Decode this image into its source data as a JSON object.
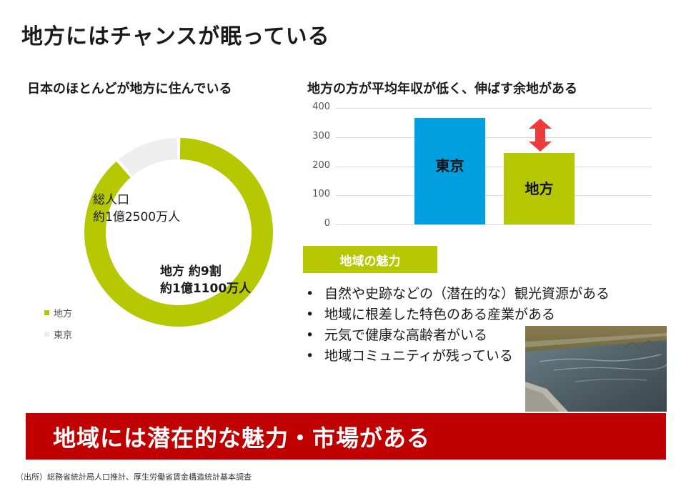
{
  "title": "地方にはチャンスが眠っている",
  "left_panel": {
    "subtitle": "日本のほとんどが地方に住んでいる",
    "total_label_line1": "総人口",
    "total_label_line2": "約1億2500万人",
    "local_label_line1": "地方 約9割",
    "local_label_line2": "約1億1100万人",
    "legend": [
      {
        "name": "地方",
        "color": "#b5c802"
      },
      {
        "name": "東京",
        "color": "#eeeeee"
      }
    ]
  },
  "right_panel": {
    "subtitle": "地方の方が平均年収が低く、伸ばす余地がある"
  },
  "chart_data": [
    {
      "type": "pie",
      "categories": [
        "地方",
        "東京"
      ],
      "values": [
        11100,
        1400
      ],
      "colors": [
        "#b5c802",
        "#eeeeee"
      ],
      "title": "日本のほとんどが地方に住んでいる",
      "legend": "left"
    },
    {
      "type": "bar",
      "categories": [
        "東京",
        "地方"
      ],
      "values": [
        365,
        245
      ],
      "colors": [
        "#009fe0",
        "#b5c802"
      ],
      "ylim": [
        0,
        400
      ],
      "yticks": [
        "400",
        "300",
        "200",
        "100",
        "0"
      ],
      "grid": true,
      "title": "地方の方が平均年収が低く、伸ばす余地がある",
      "arrow_color": "#ee3b3b"
    }
  ],
  "appeal": {
    "badge": "地域の魅力",
    "items": [
      "自然や史跡などの（潜在的な）観光資源がある",
      "地域に根差した特色のある産業がある",
      "元気で健康な高齢者がいる",
      "地域コミュニティが残っている"
    ]
  },
  "banner": "地域には潜在的な魅力・市場がある",
  "source": "（出所）総務省統計局人口推計、厚生労働省賃金構造統計基本調査"
}
